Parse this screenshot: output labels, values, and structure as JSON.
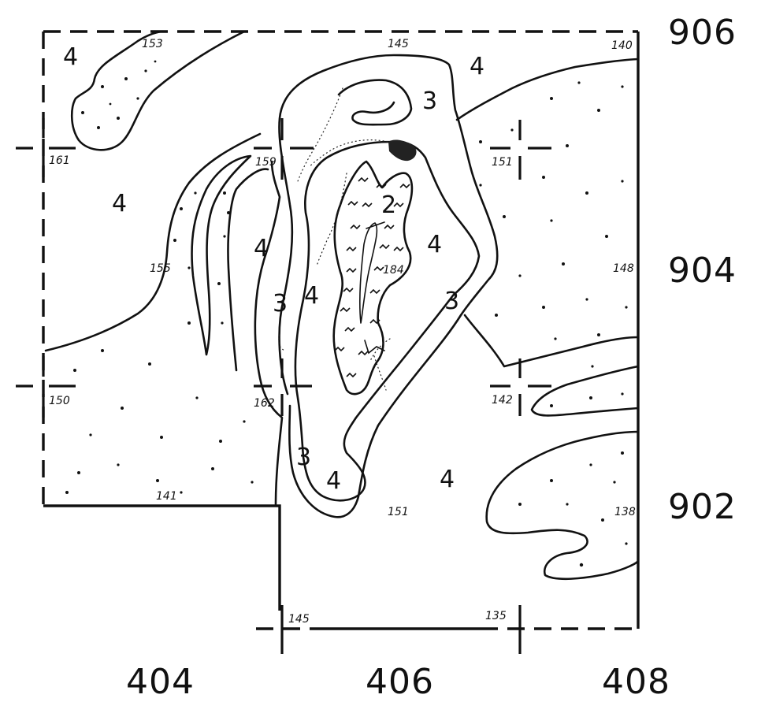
{
  "map": {
    "northing_labels": [
      "906",
      "904",
      "902"
    ],
    "easting_labels": [
      "404",
      "406",
      "408"
    ],
    "zone_labels": {
      "four": "4",
      "three": "3",
      "two": "2"
    },
    "elevations": {
      "e153": "153",
      "e145_top": "145",
      "e140": "140",
      "e161": "161",
      "e159": "159",
      "e151_upper": "151",
      "e155": "155",
      "e148": "148",
      "e184": "184",
      "e150": "150",
      "e162": "162",
      "e142": "142",
      "e141": "141",
      "e151_lower": "151",
      "e138": "138",
      "e145_bottom": "145",
      "e135": "135"
    },
    "colors": {
      "ink": "#111111",
      "paper": "#ffffff"
    }
  }
}
